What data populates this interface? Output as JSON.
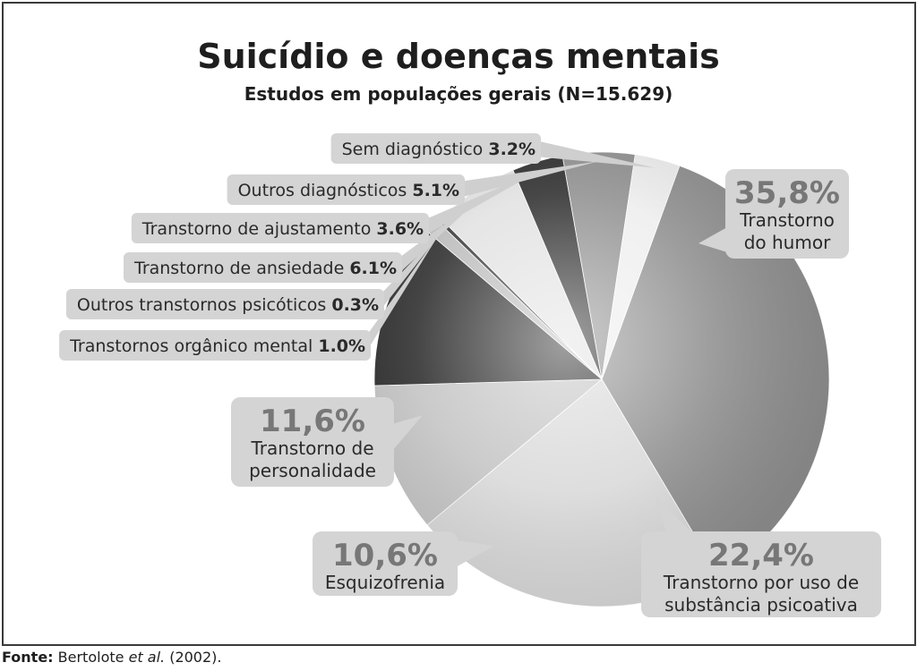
{
  "chart_data": {
    "type": "pie",
    "title": "Suicídio e doenças mentais",
    "subtitle": "Estudos em populações gerais (N=15.629)",
    "slices": [
      {
        "label": "Transtorno do humor",
        "label_lines": [
          "Transtorno",
          "do humor"
        ],
        "value_text": "35,8%",
        "value": 35.8,
        "color": "#8f8f8f"
      },
      {
        "label": "Transtorno por uso de substância psicoativa",
        "label_lines": [
          "Transtorno por uso de",
          "substância psicoativa"
        ],
        "value_text": "22,4%",
        "value": 22.4,
        "color": "#d9d9d9"
      },
      {
        "label": "Esquizofrenia",
        "label_lines": [
          "Esquizofrenia"
        ],
        "value_text": "10,6%",
        "value": 10.6,
        "color": "#c4c4c4"
      },
      {
        "label": "Transtorno de personalidade",
        "label_lines": [
          "Transtorno de",
          "personalidade"
        ],
        "value_text": "11,6%",
        "value": 11.6,
        "color": "#2c2c2c"
      },
      {
        "label": "Transtornos orgânico mental",
        "value_text": "1.0%",
        "value": 1.0,
        "color": "#bcbcbc"
      },
      {
        "label": "Outros transtornos psicóticos",
        "value_text": "0.3%",
        "value": 0.3,
        "color": "#3a3a3a"
      },
      {
        "label": "Transtorno de ansiedade",
        "value_text": "6.1%",
        "value": 6.1,
        "color": "#e2e2e2"
      },
      {
        "label": "Transtorno de ajustamento",
        "value_text": "3.6%",
        "value": 3.6,
        "color": "#2e2e2e"
      },
      {
        "label": "Outros diagnósticos",
        "value_text": "5.1%",
        "value": 5.1,
        "color": "#909090"
      },
      {
        "label": "Sem diagnóstico",
        "value_text": "3.2%",
        "value": 3.2,
        "color": "#eeeeee"
      }
    ]
  },
  "source": {
    "label": "Fonte:",
    "authors": "Bertolote",
    "etal": "et al.",
    "year": "(2002)."
  }
}
